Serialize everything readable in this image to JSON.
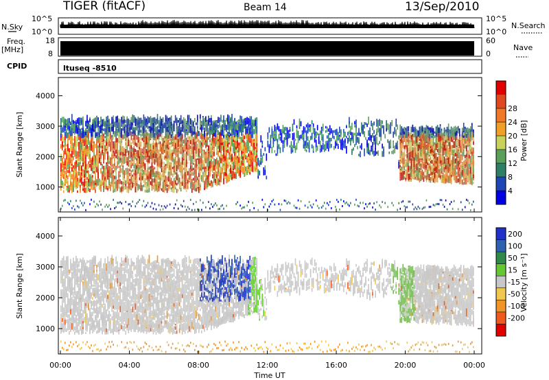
{
  "header": {
    "title": "TIGER (fitACF)",
    "beam": "Beam 14",
    "date": "13/Sep/2010"
  },
  "left_labels": {
    "nsky": "N.Sky",
    "freq": "Freq.",
    "freq_unit": "[MHz]",
    "cpid": "CPID"
  },
  "right_labels": {
    "nsearch": "N.Search",
    "nave": "Nave"
  },
  "cpid_text": "ltuseq -8510",
  "noise_ticks": [
    "10^5",
    "10^0"
  ],
  "freq_ticks": [
    "18",
    "8"
  ],
  "nave_ticks": [
    "60",
    "0"
  ],
  "x_ticks": [
    "00:00",
    "04:00",
    "08:00",
    "12:00",
    "16:00",
    "20:00",
    "00:00"
  ],
  "x_label": "Time UT",
  "y_label": "Slant Range [km]",
  "y_ticks": [
    "1000",
    "2000",
    "3000",
    "4000"
  ],
  "power_bar": {
    "label": "Power [dB]",
    "ticks": [
      "4",
      "8",
      "12",
      "16",
      "20",
      "24",
      "28"
    ],
    "colors": [
      "#0000e0",
      "#1e46b4",
      "#2f7f66",
      "#5aa05a",
      "#c8d25a",
      "#f0a028",
      "#f07828",
      "#e04820",
      "#e00000"
    ]
  },
  "velocity_bar": {
    "label": "Velocity [m s⁻¹]",
    "ticks": [
      "200",
      "100",
      "50",
      "15",
      "-15",
      "-50",
      "-100",
      "-200"
    ],
    "colors": [
      "#2030c8",
      "#3060b0",
      "#2f8a4a",
      "#64c832",
      "#c8c8c8",
      "#f0c850",
      "#f09628",
      "#f05a1e",
      "#e00000"
    ]
  },
  "chart_data": [
    {
      "type": "heatmap",
      "title": "Power",
      "xlabel": "Time UT",
      "ylabel": "Slant Range [km]",
      "x_range": [
        "00:00",
        "24:00"
      ],
      "ylim": [
        180,
        4600
      ],
      "colorbar_label": "Power [dB]",
      "colorbar_ticks": [
        4,
        8,
        12,
        16,
        20,
        24,
        28
      ],
      "description_regions": [
        {
          "time": "00:00-11:30",
          "range_km": [
            800,
            3200
          ],
          "power_db": [
            8,
            28
          ]
        },
        {
          "time": "12:00-19:30",
          "range_km": [
            1900,
            3200
          ],
          "power_db": [
            4,
            16
          ]
        },
        {
          "time": "19:30-24:00",
          "range_km": [
            1000,
            2800
          ],
          "power_db": [
            8,
            24
          ]
        }
      ]
    },
    {
      "type": "heatmap",
      "title": "Velocity",
      "xlabel": "Time UT",
      "ylabel": "Slant Range [km]",
      "x_range": [
        "00:00",
        "24:00"
      ],
      "ylim": [
        180,
        4600
      ],
      "colorbar_label": "Velocity [m s⁻¹]",
      "colorbar_ticks": [
        200,
        100,
        50,
        15,
        -15,
        -50,
        -100,
        -200
      ],
      "description_regions": [
        {
          "time": "00:00-08:00",
          "range_km": [
            800,
            3200
          ],
          "velocity": [
            -15,
            15
          ]
        },
        {
          "time": "08:00-11:00",
          "range_km": [
            1800,
            3300
          ],
          "velocity": [
            50,
            200
          ]
        },
        {
          "time": "12:00-24:00",
          "range_km": [
            1900,
            3200
          ],
          "velocity": [
            -15,
            15
          ]
        },
        {
          "time": "00:00-24:00",
          "range_km": [
            200,
            500
          ],
          "velocity": [
            -100,
            -15
          ]
        }
      ]
    }
  ]
}
